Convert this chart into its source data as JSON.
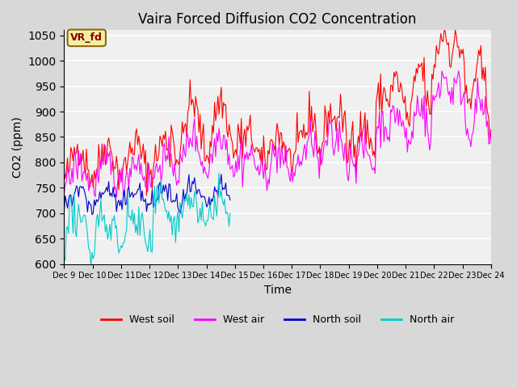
{
  "title": "Vaira Forced Diffusion CO2 Concentration",
  "xlabel": "Time",
  "ylabel": "CO2 (ppm)",
  "ylim": [
    600,
    1060
  ],
  "yticks": [
    600,
    650,
    700,
    750,
    800,
    850,
    900,
    950,
    1000,
    1050
  ],
  "label_annotation": "VR_fd",
  "colors": {
    "west_soil": "#ff0000",
    "west_air": "#ff00ff",
    "north_soil": "#0000cc",
    "north_air": "#00cccc"
  },
  "legend_labels": [
    "West soil",
    "West air",
    "North soil",
    "North air"
  ],
  "fig_bg_color": "#d8d8d8",
  "plot_bg_color": "#f0f0f0",
  "n_points": 384,
  "x_tick_labels": [
    "Dec 9",
    "Dec 10",
    "Dec 11",
    "Dec 12",
    "Dec 13",
    "Dec 14",
    "Dec 15",
    "Dec 16",
    "Dec 17",
    "Dec 18",
    "Dec 19",
    "Dec 20",
    "Dec 21",
    "Dec 22",
    "Dec 23",
    "Dec 24"
  ]
}
